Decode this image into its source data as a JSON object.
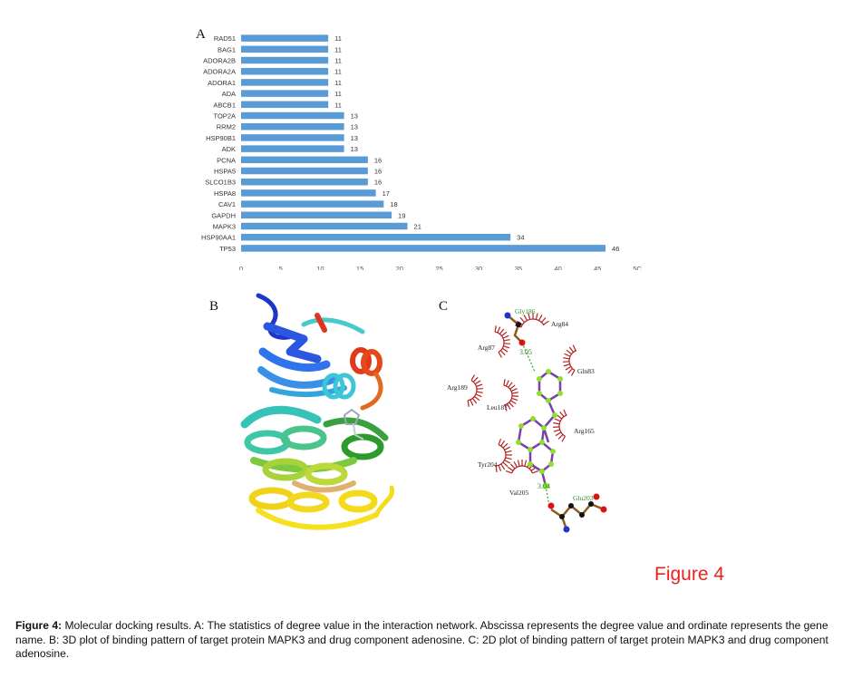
{
  "panels": {
    "a": "A",
    "b": "B",
    "c": "C"
  },
  "chart_data": {
    "type": "bar",
    "orientation": "horizontal",
    "categories": [
      "RAD51",
      "BAG1",
      "ADORA2B",
      "ADORA2A",
      "ADORA1",
      "ADA",
      "ABCB1",
      "TOP2A",
      "RRM2",
      "HSP90B1",
      "ADK",
      "PCNA",
      "HSPA5",
      "SLCO1B3",
      "HSPA8",
      "CAV1",
      "GAPDH",
      "MAPK3",
      "HSP90AA1",
      "TP53"
    ],
    "values": [
      11,
      11,
      11,
      11,
      11,
      11,
      11,
      13,
      13,
      13,
      13,
      16,
      16,
      16,
      17,
      18,
      19,
      21,
      34,
      46
    ],
    "xticks": [
      "0",
      "5",
      "10",
      "15",
      "20",
      "25",
      "30",
      "35",
      "40",
      "45",
      "5C"
    ],
    "xlim": [
      0,
      50
    ],
    "grid": false,
    "bar_color": "#5b9bd5"
  },
  "diagram_c": {
    "residues": [
      "Gly186",
      "Arg84",
      "Arg87",
      "Gln83",
      "Arg189",
      "Leu187",
      "Arg165",
      "Tyr204",
      "Val205",
      "Glu203"
    ],
    "distances": [
      "3.05",
      "3.04"
    ]
  },
  "figure_label": "Figure 4",
  "caption": {
    "lead": "Figure 4:",
    "text": " Molecular docking results. A: The statistics of degree value in the interaction network. Abscissa represents the degree value and ordinate represents the gene name. B: 3D plot of binding pattern of target protein MAPK3 and drug component adenosine. C: 2D plot of binding pattern of target protein MAPK3 and drug component adenosine."
  }
}
